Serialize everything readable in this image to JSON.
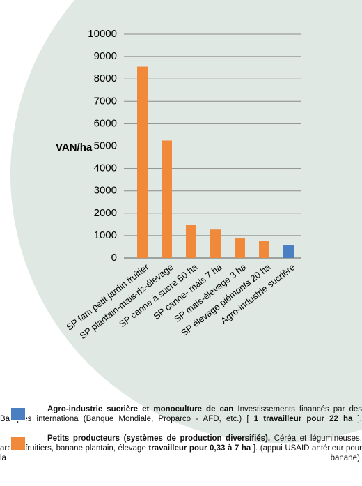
{
  "chart_data": {
    "type": "bar",
    "y_label": "VAN/ha",
    "categories": [
      "SP fam petit jardin fruitier",
      "SP plantain-mais-riz-élevage",
      "SP canne à sucre 50 ha",
      "SP canne- mais 7 ha",
      "SP mais-élevage 3 ha",
      "SP élevage piémonts 20 ha",
      "Agro-industrie sucrière"
    ],
    "values": [
      8550,
      5250,
      1480,
      1270,
      880,
      760,
      560
    ],
    "colors": [
      "#f0893a",
      "#f0893a",
      "#f0893a",
      "#f0893a",
      "#f0893a",
      "#f0893a",
      "#4a7fc1"
    ],
    "ylim": [
      0,
      10000
    ],
    "yticks": [
      0,
      1000,
      2000,
      3000,
      4000,
      5000,
      6000,
      7000,
      8000,
      9000,
      10000
    ],
    "grid": true,
    "legend": [
      {
        "color": "#4a7fc1",
        "parts": [
          {
            "text": "Agro-industrie sucrière et monoculture de can",
            "bold": true
          },
          {
            "text": "Investissements financés par des Banques internationa",
            "bold": false
          },
          {
            "text": "(Banque Mondiale, Proparco - AFD, etc.) [",
            "bold": false
          },
          {
            "text": "1 travailleur pour 22 ha",
            "bold": true
          },
          {
            "text": "].",
            "bold": false
          }
        ]
      },
      {
        "color": "#f0893a",
        "parts": [
          {
            "text": "Petits producteurs (systèmes de production diversifiés).",
            "bold": true
          },
          {
            "text": "Céréa et légumineuses, arbres fruitiers, banane plantain, élevage",
            "bold": false
          },
          {
            "text": "travailleur pour 0,33 à 7 ha",
            "bold": true
          },
          {
            "text": "]. (appui USAID antérieur pour la banane).",
            "bold": false
          }
        ]
      }
    ]
  }
}
